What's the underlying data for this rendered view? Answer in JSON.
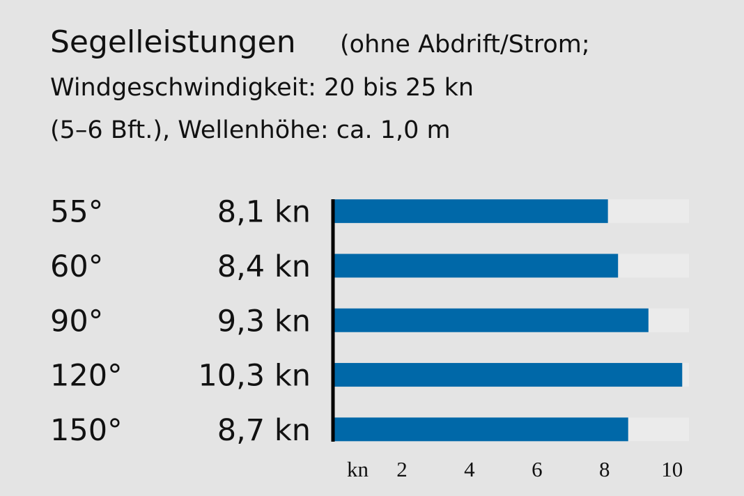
{
  "chart_data": {
    "type": "barh",
    "title": "Segelleistungen",
    "subtitle": [
      "(ohne Abdrift/Strom;",
      "Windgeschwindigkeit: 20 bis 25 kn",
      "(5–6 Bft.), Wellenhöhe: ca. 1,0 m"
    ],
    "categories": [
      "55°",
      "60°",
      "90°",
      "120°",
      "150°"
    ],
    "values": [
      8.1,
      8.4,
      9.3,
      10.3,
      8.7
    ],
    "value_labels": [
      "8,1 kn",
      "8,4 kn",
      "9,3 kn",
      "10,3 kn",
      "8,7 kn"
    ],
    "color": "#0068a8",
    "xlabel": "kn",
    "xlim": [
      0,
      10.5
    ],
    "xticks": [
      2,
      4,
      6,
      8,
      10
    ]
  }
}
